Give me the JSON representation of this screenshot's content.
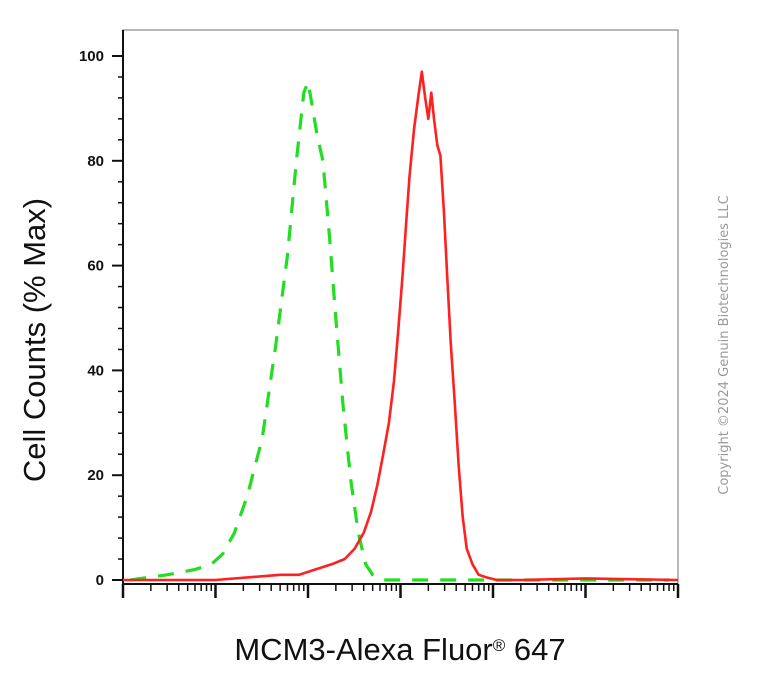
{
  "chart_data": {
    "type": "line",
    "title": "",
    "xlabel": "MCM3-Alexa Fluor",
    "xlabel_mark": "®",
    "xlabel_suffix": " 647",
    "ylabel": "Cell Counts (% Max)",
    "x_scale": "log",
    "xlim": [
      0.1,
      100000
    ],
    "ylim": [
      0,
      100
    ],
    "yticks": [
      0,
      20,
      40,
      60,
      80,
      100
    ],
    "grid": false,
    "legend": "none",
    "series": [
      {
        "color": "#22dd22",
        "style": "dashed",
        "x": [
          0.12,
          0.3,
          0.6,
          0.9,
          1.2,
          1.6,
          2.2,
          3.2,
          4.5,
          6.0,
          7.5,
          9.0,
          10.0,
          11.0,
          12.5,
          14.5,
          17.0,
          20.0,
          24.0,
          29.0,
          35.0,
          42.0,
          50.0,
          62.0,
          80.0,
          120.0,
          300.0,
          1000.0,
          10000.0,
          80000.0
        ],
        "y": [
          0,
          1,
          2,
          3,
          5,
          9,
          16,
          27,
          45,
          62,
          80,
          93,
          95,
          91,
          85,
          80,
          66,
          50,
          33,
          19,
          9,
          3,
          1,
          0,
          0,
          0,
          0,
          0,
          0,
          0
        ]
      },
      {
        "color": "#ff2020",
        "style": "solid",
        "x": [
          0.1,
          1.0,
          5.0,
          8.0,
          12.0,
          18.0,
          25.0,
          32.0,
          40.0,
          48.0,
          56.0,
          65.0,
          75.0,
          85.0,
          95.0,
          105.0,
          115.0,
          125.0,
          140.0,
          155.0,
          170.0,
          185.0,
          200.0,
          215.0,
          230.0,
          250.0,
          270.0,
          295.0,
          320.0,
          350.0,
          385.0,
          425.0,
          470.0,
          520.0,
          600.0,
          700.0,
          850.0,
          1100.0,
          2000.0,
          10000.0,
          100000.0
        ],
        "y": [
          0,
          0,
          1,
          1,
          2,
          3,
          4,
          6,
          9,
          13,
          18,
          24,
          30,
          38,
          48,
          58,
          68,
          77,
          86,
          92,
          97,
          92,
          88,
          93,
          88,
          83,
          81,
          70,
          58,
          45,
          34,
          22,
          12,
          6,
          3,
          1,
          0.5,
          0,
          0,
          0.3,
          0
        ]
      }
    ]
  },
  "copyright": "Copyright ©2024 Genuin Biotechnologies LLC"
}
